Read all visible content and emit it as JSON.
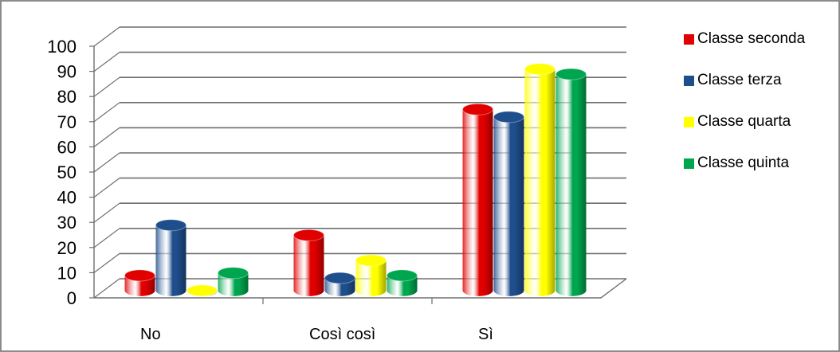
{
  "chart_data": {
    "type": "bar",
    "categories": [
      "No",
      "Così così",
      "Sì"
    ],
    "series": [
      {
        "name": "Classe seconda",
        "values": [
          6,
          22,
          72
        ],
        "color": "#e00000"
      },
      {
        "name": "Classe terza",
        "values": [
          26,
          5,
          69
        ],
        "color": "#1f4e8c"
      },
      {
        "name": "Classe quarta",
        "values": [
          0,
          12,
          88
        ],
        "color": "#ffff00"
      },
      {
        "name": "Classe quinta",
        "values": [
          7,
          6,
          86
        ],
        "color": "#00a64f"
      }
    ],
    "y_ticks": [
      "0",
      "10",
      "20",
      "30",
      "40",
      "50",
      "60",
      "70",
      "80",
      "90",
      "100"
    ],
    "ylim": [
      0,
      100
    ],
    "grid": true,
    "legend_position": "right",
    "style": "3d-cylinder"
  }
}
